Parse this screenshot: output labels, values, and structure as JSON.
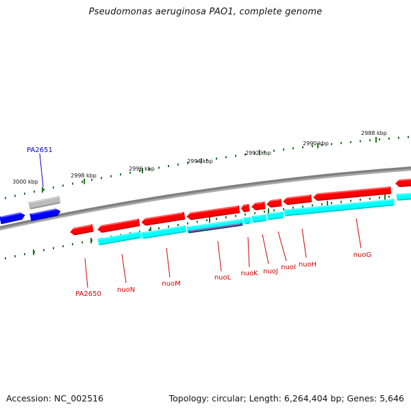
{
  "title": "Pseudomonas aeruginosa PAO1, complete genome",
  "footer": {
    "accession": "Accession: NC_002516",
    "topology": "Topology: circular; Length: 6,264,404 bp; Genes: 5,646"
  },
  "colors": {
    "forward_gene": "#ff0000",
    "reverse_cds": "#00ffff",
    "highlight_cds": "#3d3d8f",
    "blue_gene": "#0000ff",
    "grey_gene": "#bbbbbb",
    "backbone": "#808080",
    "tick": "#207020",
    "gene_label": "#cc0000",
    "selected_label": "#0000cc"
  },
  "scale_labels": [
    "3000 kbp",
    "2998 kbp",
    "2996 kbp",
    "2994 kbp",
    "2992 kbp",
    "2990 kbp",
    "2988 kbp"
  ],
  "gene_labels": [
    {
      "name": "PA2651",
      "color": "selected_label"
    },
    {
      "name": "PA2650",
      "color": "gene_label"
    },
    {
      "name": "nuoN",
      "color": "gene_label"
    },
    {
      "name": "nuoM",
      "color": "gene_label"
    },
    {
      "name": "nuoL",
      "color": "gene_label"
    },
    {
      "name": "nuoK",
      "color": "gene_label"
    },
    {
      "name": "nuoJ",
      "color": "gene_label"
    },
    {
      "name": "nuoI",
      "color": "gene_label"
    },
    {
      "name": "nuoH",
      "color": "gene_label"
    },
    {
      "name": "nuoG",
      "color": "gene_label"
    }
  ]
}
